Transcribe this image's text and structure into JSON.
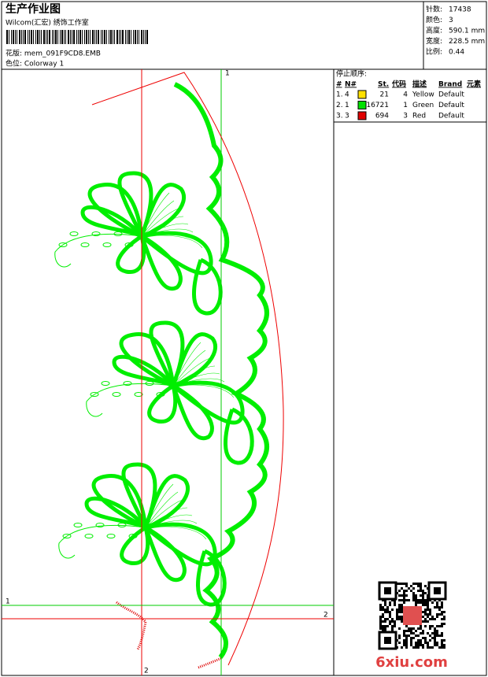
{
  "header": {
    "title": "生产作业图",
    "studio": "Wilcom(汇宏) 绣饰工作室",
    "design": "花版: mem_091F9CD8.EMB",
    "colorway": "色位: Colorway 1"
  },
  "stats": [
    {
      "label": "针数:",
      "value": "17438"
    },
    {
      "label": "颜色:",
      "value": "3"
    },
    {
      "label": "高度:",
      "value": "590.1 mm"
    },
    {
      "label": "宽度:",
      "value": "228.5 mm"
    },
    {
      "label": "比例:",
      "value": "0.44"
    }
  ],
  "stop_sequence": {
    "title": "停止顺序:",
    "columns": [
      "#",
      "N#",
      "St.",
      "代码",
      "描述",
      "Brand",
      "元素"
    ],
    "rows": [
      {
        "index": "1.",
        "needle": "4",
        "stitches": "21",
        "code": "4",
        "description": "Yellow",
        "brand": "Default",
        "color": "#ffe000"
      },
      {
        "index": "2.",
        "needle": "1",
        "stitches": "16721",
        "code": "1",
        "description": "Green",
        "brand": "Default",
        "color": "#00e000"
      },
      {
        "index": "3.",
        "needle": "3",
        "stitches": "694",
        "code": "3",
        "description": "Red",
        "brand": "Default",
        "color": "#e00000"
      }
    ]
  },
  "guides": {
    "green_vertical": "1",
    "red_vertical": "2",
    "green_horizontal": "1",
    "red_horizontal": "2"
  },
  "watermark": "6xiu.com"
}
